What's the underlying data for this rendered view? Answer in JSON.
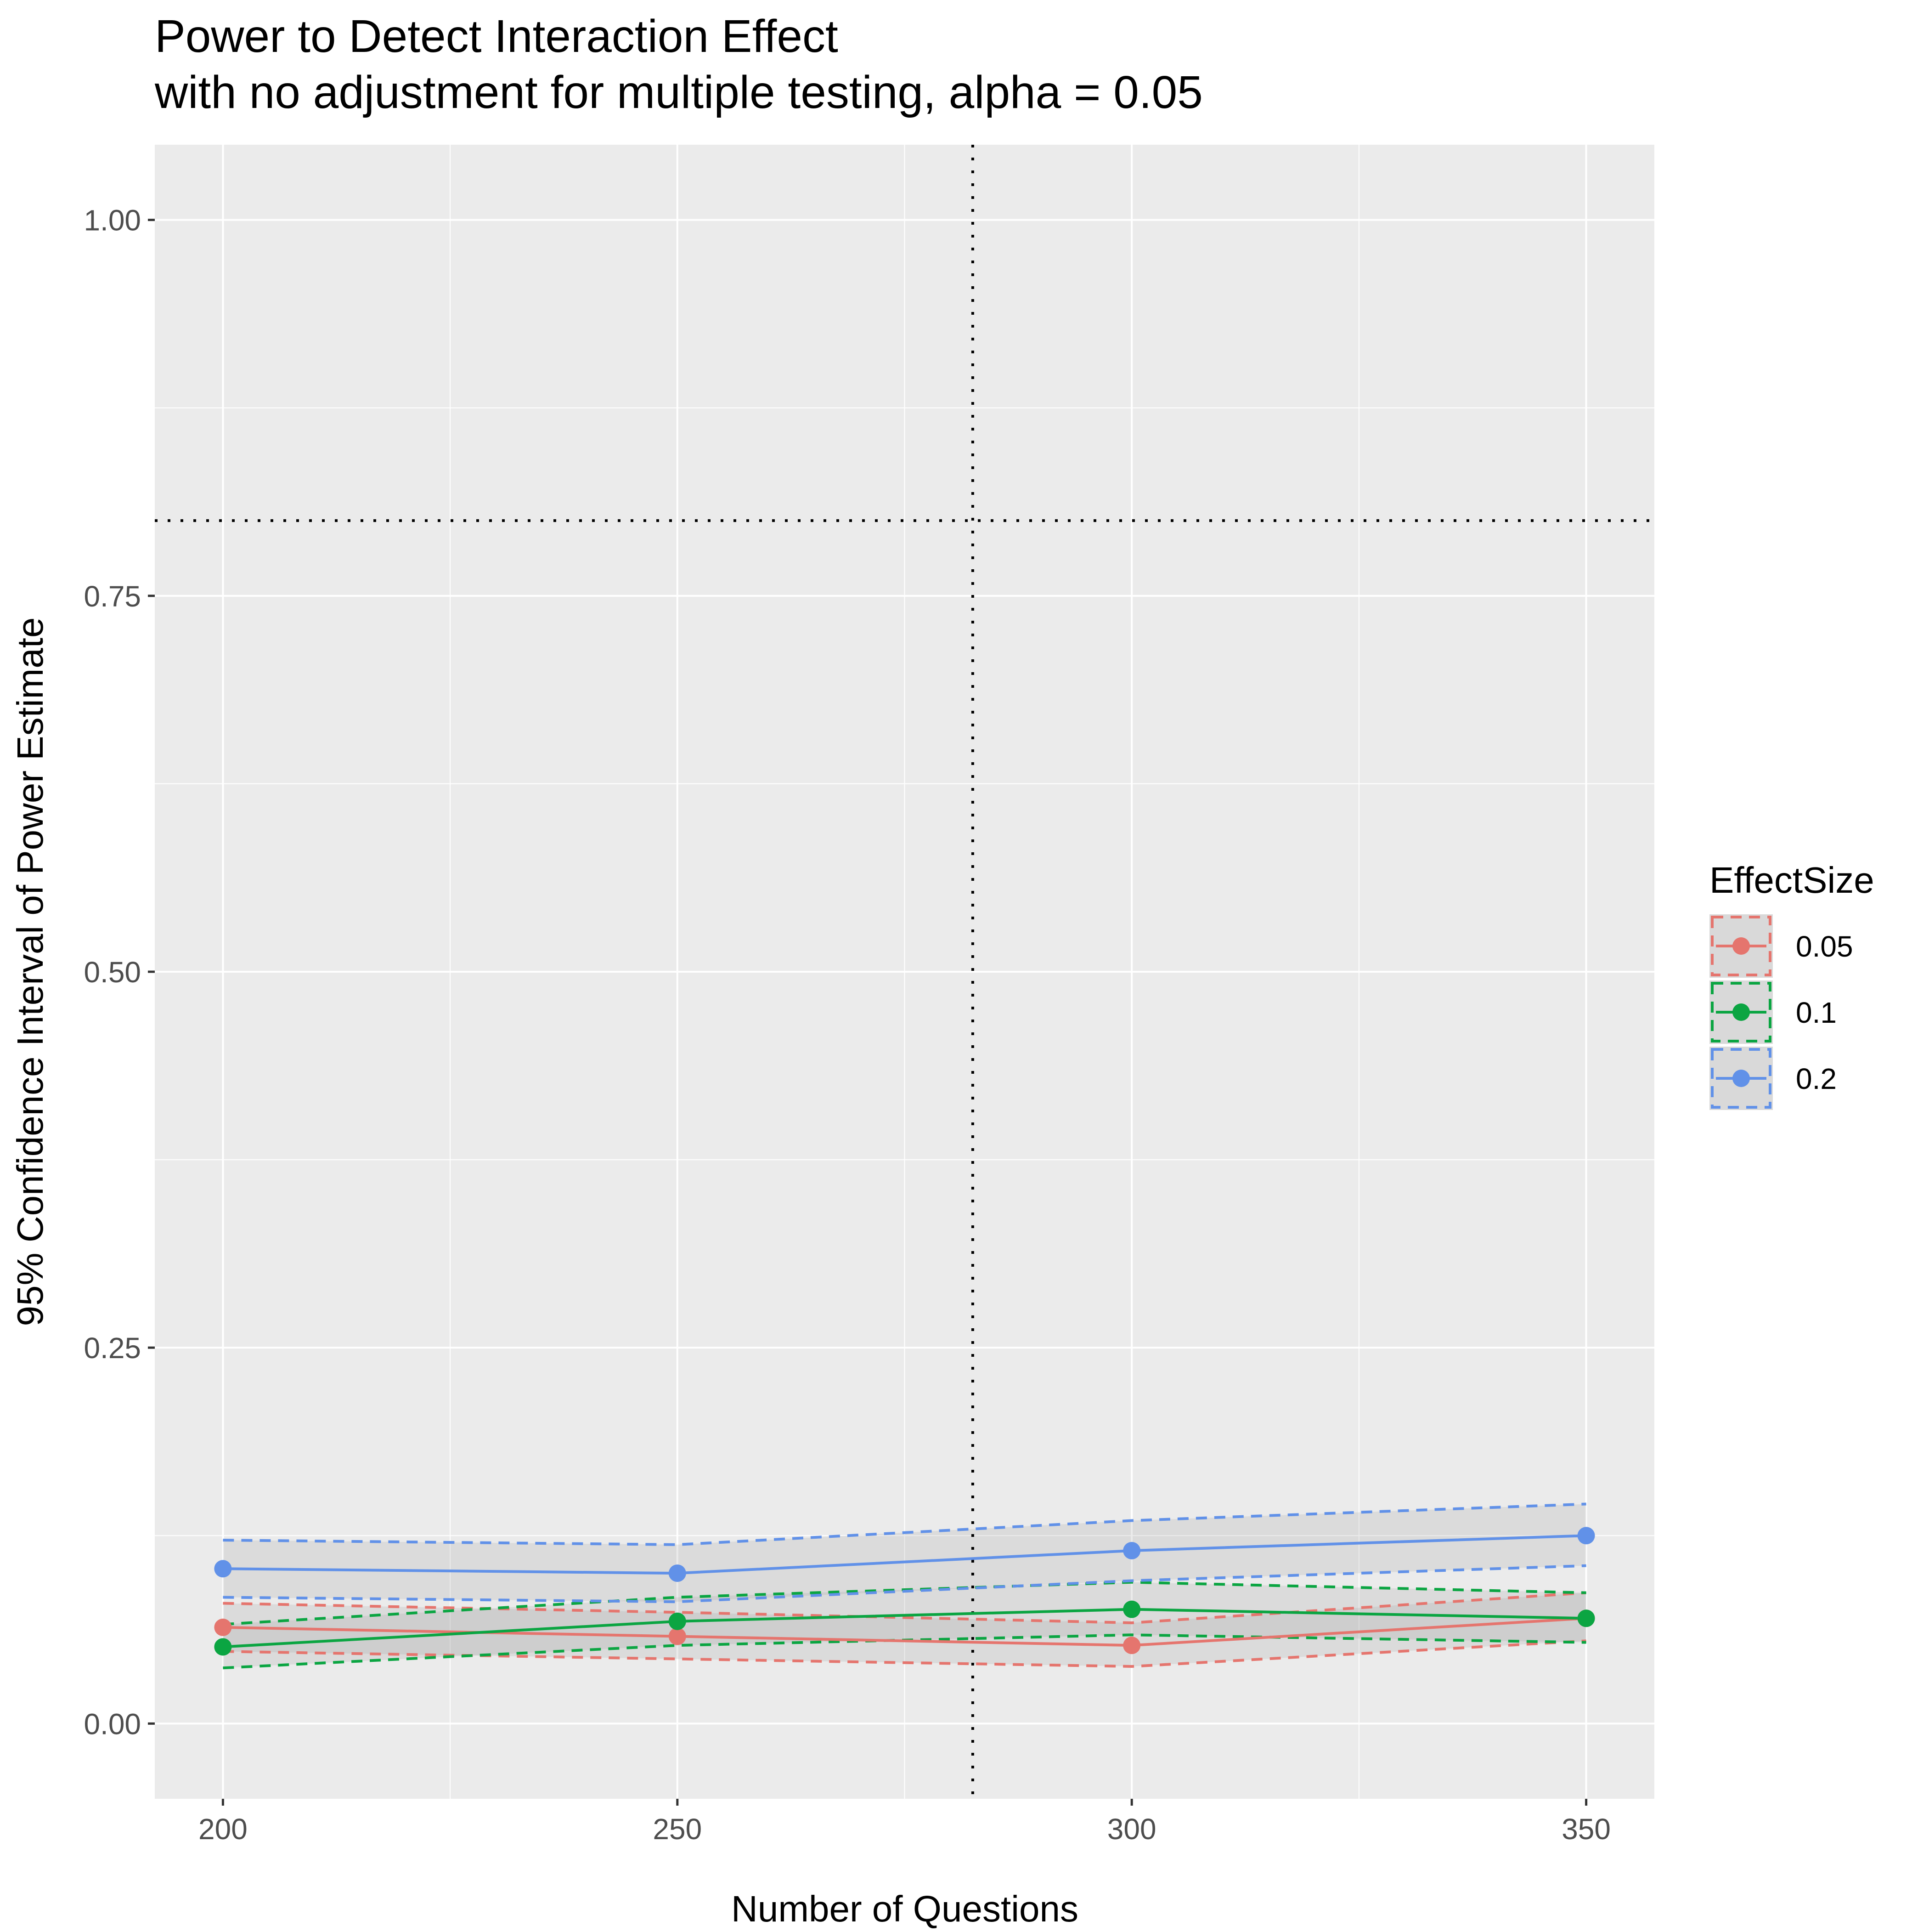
{
  "chart_data": {
    "type": "line",
    "title": "Power to Detect Interaction Effect",
    "subtitle": "with no adjustment for multiple testing, alpha = 0.05",
    "xlabel": "Number of Questions",
    "ylabel": "95% Confidence Interval of Power Estimate",
    "x": [
      200,
      250,
      300,
      350
    ],
    "x_ticks": [
      200,
      250,
      300,
      350
    ],
    "x_tick_labels": [
      "200",
      "250",
      "300",
      "350"
    ],
    "y_ticks": [
      0,
      0.25,
      0.5,
      0.75,
      1
    ],
    "y_tick_labels": [
      "0.00",
      "0.25",
      "0.50",
      "0.75",
      "1.00"
    ],
    "xlim": [
      192.5,
      357.5
    ],
    "ylim": [
      -0.05,
      1.05
    ],
    "grid": true,
    "reference_lines": [
      {
        "orientation": "horizontal",
        "value": 0.8,
        "style": "dotted"
      },
      {
        "orientation": "vertical",
        "value": 282.5,
        "style": "dotted"
      }
    ],
    "legend": {
      "title": "EffectSize",
      "position": "right"
    },
    "series": [
      {
        "name": "0.05",
        "color": "#E5756E",
        "values": [
          0.064,
          0.058,
          0.052,
          0.07
        ],
        "lower": [
          0.048,
          0.043,
          0.038,
          0.055
        ],
        "upper": [
          0.08,
          0.074,
          0.067,
          0.087
        ]
      },
      {
        "name": "0.1",
        "color": "#0BA542",
        "values": [
          0.051,
          0.068,
          0.076,
          0.07
        ],
        "lower": [
          0.037,
          0.052,
          0.059,
          0.054
        ],
        "upper": [
          0.066,
          0.084,
          0.094,
          0.087
        ]
      },
      {
        "name": "0.2",
        "color": "#6191E8",
        "values": [
          0.103,
          0.1,
          0.115,
          0.125
        ],
        "lower": [
          0.084,
          0.081,
          0.095,
          0.105
        ],
        "upper": [
          0.122,
          0.119,
          0.135,
          0.146
        ]
      }
    ]
  }
}
